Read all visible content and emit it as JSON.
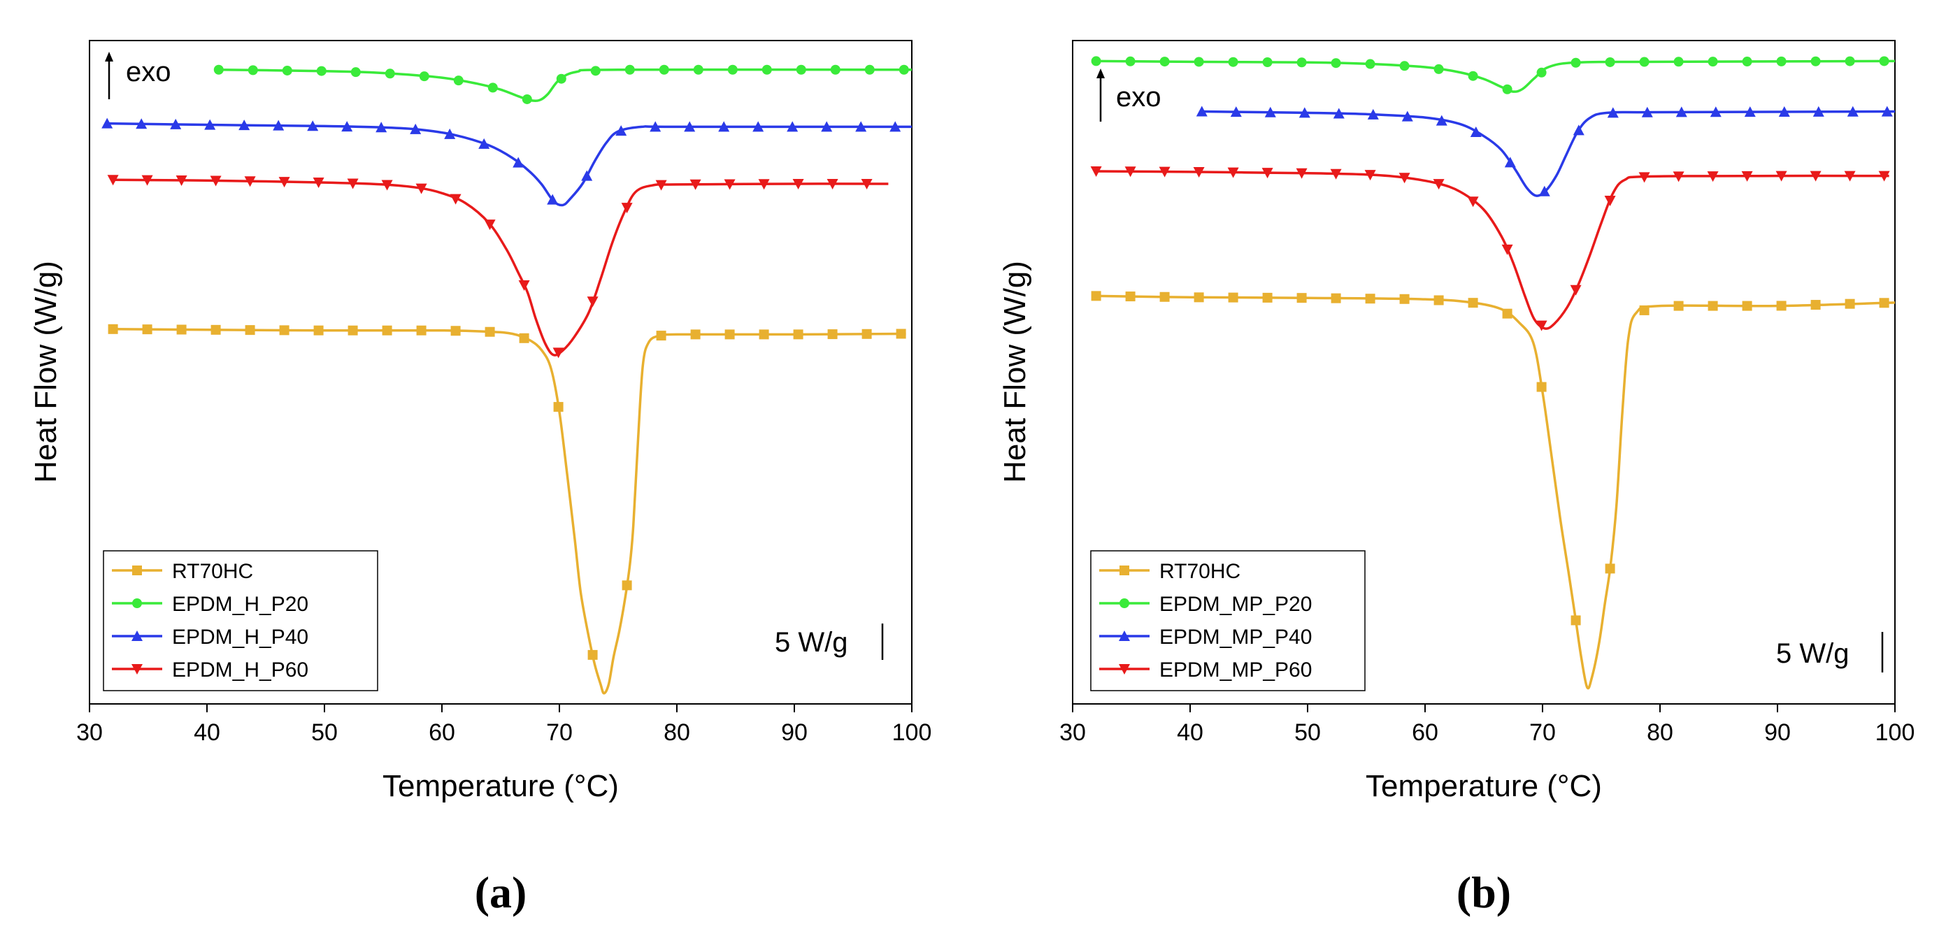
{
  "chart_data": [
    {
      "type": "line",
      "panel_label": "(a)",
      "xlabel": "Temperature (°C)",
      "ylabel": "Heat Flow (W/g)",
      "xlim": [
        30,
        100
      ],
      "ylim": [
        0,
        100
      ],
      "xticks": [
        30,
        40,
        50,
        60,
        70,
        80,
        90,
        100
      ],
      "y_ticks_labeled": false,
      "exo_label": "exo",
      "scale_label": "5 W/g",
      "legend_position": "bottom-left",
      "series": [
        {
          "name": "RT70HC",
          "color": "#E8B030",
          "marker": "square",
          "points": [
            [
              32,
              56.5
            ],
            [
              40,
              56.4
            ],
            [
              50,
              56.3
            ],
            [
              60,
              56.3
            ],
            [
              64,
              56.1
            ],
            [
              66,
              55.8
            ],
            [
              67.5,
              54.8
            ],
            [
              68.5,
              53.3
            ],
            [
              69.3,
              50.5
            ],
            [
              70,
              44
            ],
            [
              70.7,
              34
            ],
            [
              71.3,
              25
            ],
            [
              71.8,
              17
            ],
            [
              72.4,
              11
            ],
            [
              73,
              6
            ],
            [
              73.5,
              3
            ],
            [
              73.8,
              1.6
            ],
            [
              74.2,
              3
            ],
            [
              74.6,
              7
            ],
            [
              75.1,
              11
            ],
            [
              75.6,
              16
            ],
            [
              76,
              21
            ],
            [
              76.3,
              27
            ],
            [
              76.7,
              40
            ],
            [
              77.1,
              51
            ],
            [
              77.6,
              54.5
            ],
            [
              78.5,
              55.5
            ],
            [
              80,
              55.7
            ],
            [
              90,
              55.7
            ],
            [
              99.5,
              55.8
            ]
          ]
        },
        {
          "name": "EPDM_H_P20",
          "color": "#3AEA3A",
          "marker": "circle",
          "points": [
            [
              41,
              95.6
            ],
            [
              50,
              95.4
            ],
            [
              55,
              95.1
            ],
            [
              60,
              94.4
            ],
            [
              63,
              93.5
            ],
            [
              65,
              92.6
            ],
            [
              66.5,
              91.6
            ],
            [
              67.5,
              91
            ],
            [
              68.3,
              91
            ],
            [
              69,
              91.9
            ],
            [
              70,
              94.1
            ],
            [
              71.5,
              95.3
            ],
            [
              75,
              95.6
            ],
            [
              100,
              95.6
            ]
          ]
        },
        {
          "name": "EPDM_H_P40",
          "color": "#2A3AE8",
          "marker": "triangle-up",
          "points": [
            [
              31.5,
              87.5
            ],
            [
              40,
              87.3
            ],
            [
              50,
              87.1
            ],
            [
              55,
              86.9
            ],
            [
              58,
              86.6
            ],
            [
              61,
              85.8
            ],
            [
              64,
              84.2
            ],
            [
              66,
              82.3
            ],
            [
              67.5,
              80.2
            ],
            [
              68.5,
              78.3
            ],
            [
              69.5,
              75.8
            ],
            [
              70.3,
              75.2
            ],
            [
              71,
              76.3
            ],
            [
              72,
              78.5
            ],
            [
              73,
              81.8
            ],
            [
              74,
              84.6
            ],
            [
              75,
              86.3
            ],
            [
              77,
              87
            ],
            [
              80,
              87
            ],
            [
              100,
              87
            ]
          ]
        },
        {
          "name": "EPDM_H_P60",
          "color": "#E81A1A",
          "marker": "triangle-down",
          "points": [
            [
              32,
              79
            ],
            [
              40,
              78.9
            ],
            [
              50,
              78.6
            ],
            [
              55,
              78.3
            ],
            [
              58,
              77.8
            ],
            [
              60,
              77
            ],
            [
              62,
              75.5
            ],
            [
              64,
              72.5
            ],
            [
              65.5,
              68.5
            ],
            [
              66.5,
              65
            ],
            [
              67.3,
              62
            ],
            [
              68,
              58
            ],
            [
              68.8,
              54.3
            ],
            [
              69.5,
              52.6
            ],
            [
              70.3,
              53.3
            ],
            [
              71.3,
              55.4
            ],
            [
              72.5,
              59
            ],
            [
              73.5,
              64
            ],
            [
              74.5,
              69.5
            ],
            [
              75.5,
              74
            ],
            [
              76.5,
              77.2
            ],
            [
              78,
              78.2
            ],
            [
              80,
              78.3
            ],
            [
              90,
              78.4
            ],
            [
              98,
              78.4
            ]
          ]
        }
      ]
    },
    {
      "type": "line",
      "panel_label": "(b)",
      "xlabel": "Temperature (°C)",
      "ylabel": "Heat Flow (W/g)",
      "xlim": [
        30,
        100
      ],
      "ylim": [
        0,
        100
      ],
      "xticks": [
        30,
        40,
        50,
        60,
        70,
        80,
        90,
        100
      ],
      "y_ticks_labeled": false,
      "exo_label": "exo",
      "scale_label": "5 W/g",
      "legend_position": "bottom-left",
      "series": [
        {
          "name": "RT70HC",
          "color": "#E8B030",
          "marker": "square",
          "points": [
            [
              32,
              61.5
            ],
            [
              40,
              61.3
            ],
            [
              50,
              61.2
            ],
            [
              60,
              61
            ],
            [
              64,
              60.5
            ],
            [
              66.5,
              59.5
            ],
            [
              68,
              57.5
            ],
            [
              69.2,
              54.5
            ],
            [
              70,
              47
            ],
            [
              70.8,
              37
            ],
            [
              71.5,
              28
            ],
            [
              72.2,
              20
            ],
            [
              72.8,
              13
            ],
            [
              73.3,
              7
            ],
            [
              73.8,
              2.5
            ],
            [
              74.2,
              4
            ],
            [
              74.8,
              9
            ],
            [
              75.3,
              15
            ],
            [
              75.8,
              21
            ],
            [
              76.3,
              30
            ],
            [
              76.8,
              44
            ],
            [
              77.3,
              55
            ],
            [
              78,
              59
            ],
            [
              80,
              60
            ],
            [
              90,
              60
            ],
            [
              100,
              60.5
            ]
          ]
        },
        {
          "name": "EPDM_MP_P20",
          "color": "#3AEA3A",
          "marker": "circle",
          "points": [
            [
              32,
              96.9
            ],
            [
              40,
              96.8
            ],
            [
              50,
              96.7
            ],
            [
              55,
              96.5
            ],
            [
              60,
              96
            ],
            [
              63,
              95.2
            ],
            [
              65,
              94.2
            ],
            [
              66.5,
              93
            ],
            [
              67.5,
              92.3
            ],
            [
              68.3,
              92.7
            ],
            [
              69.3,
              94.3
            ],
            [
              70.5,
              96
            ],
            [
              73,
              96.7
            ],
            [
              80,
              96.8
            ],
            [
              100,
              96.9
            ]
          ]
        },
        {
          "name": "EPDM_MP_P40",
          "color": "#2A3AE8",
          "marker": "triangle-up",
          "points": [
            [
              41,
              89.3
            ],
            [
              50,
              89.1
            ],
            [
              55,
              88.9
            ],
            [
              60,
              88.4
            ],
            [
              63,
              87.4
            ],
            [
              65,
              85.6
            ],
            [
              66.5,
              83.5
            ],
            [
              67.7,
              80.5
            ],
            [
              68.7,
              77.7
            ],
            [
              69.5,
              76.6
            ],
            [
              70.3,
              77.4
            ],
            [
              71.2,
              79.7
            ],
            [
              72,
              82.7
            ],
            [
              73,
              86.3
            ],
            [
              74,
              88.3
            ],
            [
              75.5,
              89.1
            ],
            [
              80,
              89.2
            ],
            [
              100,
              89.3
            ]
          ]
        },
        {
          "name": "EPDM_MP_P60",
          "color": "#E81A1A",
          "marker": "triangle-down",
          "points": [
            [
              32,
              80.3
            ],
            [
              40,
              80.2
            ],
            [
              50,
              80
            ],
            [
              55,
              79.8
            ],
            [
              58,
              79.4
            ],
            [
              61,
              78.5
            ],
            [
              63,
              77.2
            ],
            [
              65,
              74.5
            ],
            [
              66.5,
              70.5
            ],
            [
              67.5,
              66.5
            ],
            [
              68.5,
              61.5
            ],
            [
              69.3,
              58
            ],
            [
              70.2,
              56.6
            ],
            [
              71,
              57.3
            ],
            [
              72.1,
              59.8
            ],
            [
              73,
              63
            ],
            [
              74,
              67.5
            ],
            [
              75,
              72.5
            ],
            [
              76,
              77
            ],
            [
              77,
              79
            ],
            [
              79,
              79.5
            ],
            [
              90,
              79.6
            ],
            [
              99.5,
              79.6
            ]
          ]
        }
      ]
    }
  ]
}
